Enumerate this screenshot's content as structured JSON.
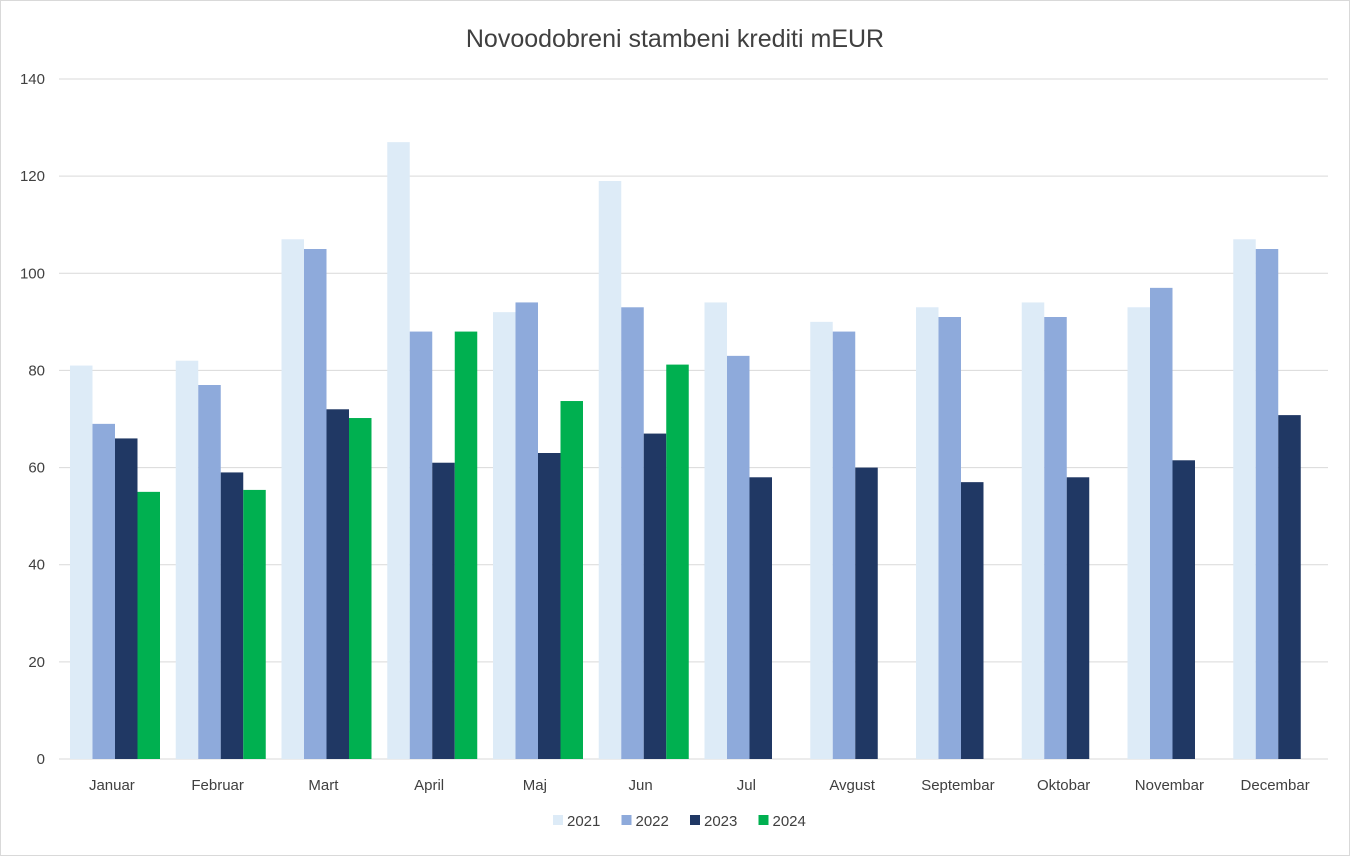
{
  "chart_data": {
    "type": "bar",
    "title": "Novoodobreni stambeni krediti mEUR",
    "xlabel": "",
    "ylabel": "",
    "ylim": [
      0,
      140
    ],
    "yticks": [
      0,
      20,
      40,
      60,
      80,
      100,
      120,
      140
    ],
    "grid": true,
    "legend_position": "bottom",
    "categories": [
      "Januar",
      "Februar",
      "Mart",
      "April",
      "Maj",
      "Jun",
      "Jul",
      "Avgust",
      "Septembar",
      "Oktobar",
      "Novembar",
      "Decembar"
    ],
    "series": [
      {
        "name": "2021",
        "color": "#ddebf7",
        "values": [
          81,
          82,
          107,
          127,
          92,
          119,
          94,
          90,
          93,
          94,
          93,
          107
        ]
      },
      {
        "name": "2022",
        "color": "#8eaadb",
        "values": [
          69,
          77,
          105,
          88,
          94,
          93,
          83,
          88,
          91,
          91,
          97,
          105
        ]
      },
      {
        "name": "2023",
        "color": "#203864",
        "values": [
          66,
          59,
          72,
          61,
          63,
          67,
          58,
          60,
          57,
          58,
          61.5,
          70.8
        ]
      },
      {
        "name": "2024",
        "color": "#00b050",
        "values": [
          55,
          55.4,
          70.2,
          88,
          73.7,
          81.2,
          null,
          null,
          null,
          null,
          null,
          null
        ]
      }
    ]
  }
}
